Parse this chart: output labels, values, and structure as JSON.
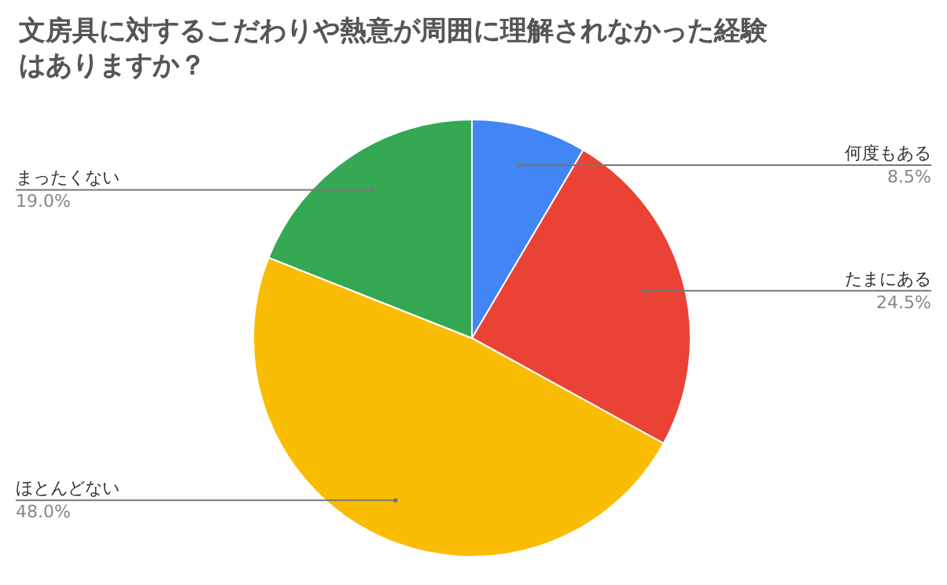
{
  "chart_data": {
    "type": "pie",
    "title": "文房具に対するこだわりや熱意が周囲に理解されなかった経験はありますか？",
    "categories": [
      "何度もある",
      "たまにある",
      "ほとんどない",
      "まったくない"
    ],
    "values": [
      8.5,
      24.5,
      48.0,
      19.0
    ],
    "value_labels": [
      "8.5%",
      "24.5%",
      "48.0%",
      "19.0%"
    ],
    "colors": [
      "#4285f4",
      "#ea4335",
      "#fbbc04",
      "#34a853"
    ]
  }
}
